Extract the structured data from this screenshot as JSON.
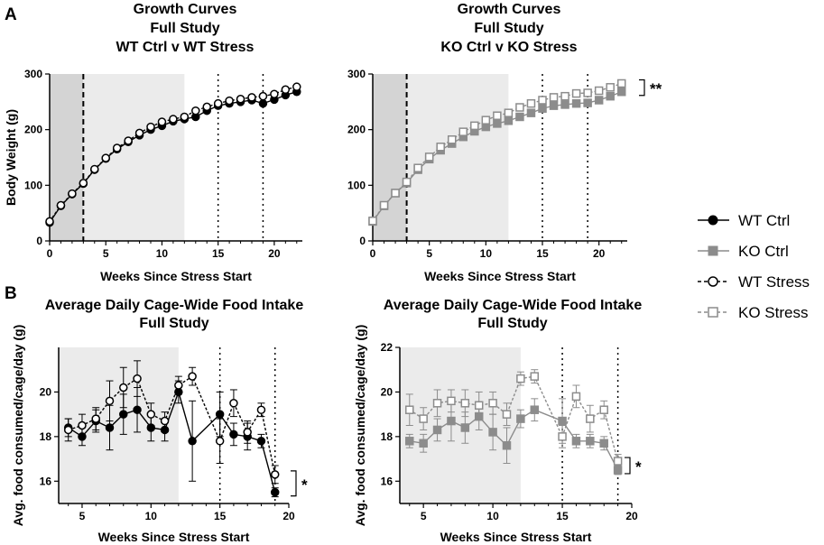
{
  "figure": {
    "panel_labels": [
      "A",
      "B"
    ],
    "legend": [
      "WT Ctrl",
      "KO Ctrl",
      "WT Stress",
      "KO Stress"
    ],
    "colors": {
      "black": "#000000",
      "gray": "#8c8c8c",
      "shade_dark": "#d4d4d4",
      "shade_light": "#ebebeb"
    }
  },
  "chart_data": [
    {
      "id": "A1",
      "type": "line",
      "title": [
        "Growth Curves",
        "Full Study",
        "WT Ctrl v WT Stress"
      ],
      "xlabel": "Weeks Since Stress Start",
      "ylabel": "Body Weight (g)",
      "xlim": [
        0,
        22.5
      ],
      "ylim": [
        0,
        300
      ],
      "xticks": [
        0,
        5,
        10,
        15,
        20
      ],
      "yticks": [
        0,
        100,
        200,
        300
      ],
      "shaded_dark": [
        0,
        3
      ],
      "shaded_light": [
        3,
        12
      ],
      "vlines": [
        {
          "x": 3,
          "style": "dashed"
        },
        {
          "x": 15,
          "style": "dotted"
        },
        {
          "x": 19,
          "style": "dotted"
        }
      ],
      "significance": "",
      "series": [
        {
          "name": "WT Ctrl",
          "color": "#000000",
          "marker": "circle",
          "filled": true,
          "x": [
            0,
            1,
            2,
            3,
            4,
            5,
            6,
            7,
            8,
            9,
            10,
            11,
            12,
            13,
            14,
            15,
            16,
            17,
            18,
            19,
            20,
            21,
            22
          ],
          "y": [
            33,
            63,
            84,
            103,
            128,
            148,
            165,
            178,
            190,
            200,
            207,
            215,
            219,
            223,
            234,
            243,
            247,
            250,
            253,
            247,
            254,
            262,
            268
          ]
        },
        {
          "name": "WT Stress",
          "color": "#000000",
          "marker": "circle",
          "filled": false,
          "x": [
            0,
            1,
            2,
            3,
            4,
            5,
            6,
            7,
            8,
            9,
            10,
            11,
            12,
            13,
            14,
            15,
            16,
            17,
            18,
            19,
            20,
            21,
            22
          ],
          "y": [
            35,
            64,
            85,
            104,
            129,
            149,
            167,
            180,
            194,
            205,
            214,
            219,
            223,
            234,
            241,
            247,
            252,
            255,
            258,
            260,
            264,
            272,
            277
          ]
        }
      ]
    },
    {
      "id": "A2",
      "type": "line",
      "title": [
        "Growth Curves",
        "Full Study",
        "KO Ctrl v KO Stress"
      ],
      "xlabel": "Weeks Since Stress Start",
      "ylabel": "",
      "xlim": [
        0,
        22.5
      ],
      "ylim": [
        0,
        300
      ],
      "xticks": [
        0,
        5,
        10,
        15,
        20
      ],
      "yticks": [
        0,
        100,
        200,
        300
      ],
      "shaded_dark": [
        0,
        3
      ],
      "shaded_light": [
        3,
        12
      ],
      "vlines": [
        {
          "x": 3,
          "style": "dashed"
        },
        {
          "x": 15,
          "style": "dotted"
        },
        {
          "x": 19,
          "style": "dotted"
        }
      ],
      "significance": "**",
      "series": [
        {
          "name": "KO Ctrl",
          "color": "#8c8c8c",
          "marker": "square",
          "filled": true,
          "x": [
            0,
            1,
            2,
            3,
            4,
            5,
            6,
            7,
            8,
            9,
            10,
            11,
            12,
            13,
            14,
            15,
            16,
            17,
            18,
            19,
            20,
            21,
            22
          ],
          "y": [
            35,
            63,
            86,
            104,
            128,
            147,
            163,
            175,
            187,
            197,
            205,
            211,
            216,
            223,
            230,
            238,
            243,
            245,
            247,
            248,
            253,
            260,
            268
          ]
        },
        {
          "name": "KO Stress",
          "color": "#8c8c8c",
          "marker": "square",
          "filled": false,
          "x": [
            0,
            1,
            2,
            3,
            4,
            5,
            6,
            7,
            8,
            9,
            10,
            11,
            12,
            13,
            14,
            15,
            16,
            17,
            18,
            19,
            20,
            21,
            22
          ],
          "y": [
            36,
            64,
            86,
            106,
            131,
            151,
            169,
            182,
            196,
            207,
            217,
            225,
            230,
            240,
            247,
            253,
            258,
            260,
            265,
            266,
            270,
            276,
            283
          ]
        }
      ]
    },
    {
      "id": "B1",
      "type": "line",
      "title": [
        "Average Daily Cage-Wide Food Intake",
        "Full Study"
      ],
      "xlabel": "Weeks Since Stress Start",
      "ylabel": "Avg. food consumed/cage/day (g)",
      "xlim": [
        3.3,
        20
      ],
      "ylim": [
        15,
        22
      ],
      "xticks": [
        5,
        10,
        15,
        20
      ],
      "yticks": [
        16,
        18,
        20
      ],
      "yticklabels_shown": [
        16,
        18,
        20
      ],
      "shaded_dark": null,
      "shaded_light": [
        3.3,
        12
      ],
      "vlines": [
        {
          "x": 15,
          "style": "dotted"
        },
        {
          "x": 19,
          "style": "dotted"
        }
      ],
      "significance": "*",
      "series": [
        {
          "name": "WT Ctrl",
          "color": "#000000",
          "marker": "circle",
          "filled": true,
          "x": [
            4,
            5,
            6,
            7,
            8,
            9,
            10,
            11,
            12,
            13,
            15,
            16,
            17,
            18,
            19
          ],
          "y": [
            18.4,
            18.0,
            18.7,
            18.4,
            19.0,
            19.2,
            18.4,
            18.3,
            20.0,
            17.8,
            19.0,
            18.1,
            18.0,
            17.8,
            15.5
          ],
          "err": [
            0.4,
            0.4,
            0.5,
            1.0,
            0.9,
            1.0,
            0.6,
            0.5,
            0.5,
            1.8,
            1.0,
            0.5,
            0.6,
            0.3,
            0.2
          ]
        },
        {
          "name": "WT Stress",
          "color": "#000000",
          "marker": "circle",
          "filled": false,
          "x": [
            4,
            5,
            6,
            7,
            8,
            9,
            10,
            11,
            12,
            13,
            15,
            16,
            17,
            18,
            19
          ],
          "y": [
            18.3,
            18.5,
            18.8,
            19.6,
            20.2,
            20.6,
            19.0,
            18.7,
            20.3,
            20.7,
            17.8,
            19.5,
            18.2,
            19.2,
            16.3
          ],
          "err": [
            0.5,
            0.5,
            0.5,
            0.9,
            0.9,
            0.8,
            0.5,
            0.4,
            0.4,
            0.4,
            1.0,
            0.6,
            0.5,
            0.3,
            0.4
          ]
        }
      ]
    },
    {
      "id": "B2",
      "type": "line",
      "title": [
        "Average Daily Cage-Wide Food Intake",
        "Full Study"
      ],
      "xlabel": "Weeks Since Stress Start",
      "ylabel": "Avg. food consumed/cage/day (g)",
      "xlim": [
        3.3,
        20
      ],
      "ylim": [
        15,
        22
      ],
      "xticks": [
        5,
        10,
        15,
        20
      ],
      "yticks": [
        16,
        18,
        20,
        22
      ],
      "shaded_dark": null,
      "shaded_light": [
        3.3,
        12
      ],
      "vlines": [
        {
          "x": 15,
          "style": "dotted"
        },
        {
          "x": 19,
          "style": "dotted"
        }
      ],
      "significance": "*",
      "series": [
        {
          "name": "KO Ctrl",
          "color": "#8c8c8c",
          "marker": "square",
          "filled": true,
          "x": [
            4,
            5,
            6,
            7,
            8,
            9,
            10,
            11,
            12,
            13,
            15,
            16,
            17,
            18,
            19
          ],
          "y": [
            17.8,
            17.7,
            18.3,
            18.7,
            18.4,
            18.9,
            18.2,
            17.6,
            18.8,
            19.2,
            18.7,
            17.8,
            17.8,
            17.7,
            16.5
          ],
          "err": [
            0.3,
            0.4,
            0.5,
            0.9,
            0.7,
            0.6,
            0.8,
            0.8,
            0.4,
            0.5,
            1.0,
            0.3,
            0.3,
            0.3,
            0.2
          ]
        },
        {
          "name": "KO Stress",
          "color": "#8c8c8c",
          "marker": "square",
          "filled": false,
          "x": [
            4,
            5,
            6,
            7,
            8,
            9,
            10,
            11,
            12,
            13,
            15,
            16,
            17,
            18,
            19
          ],
          "y": [
            19.2,
            18.8,
            19.5,
            19.6,
            19.5,
            19.4,
            19.5,
            19.0,
            20.6,
            20.7,
            18.0,
            19.8,
            18.8,
            19.2,
            16.9
          ],
          "err": [
            0.7,
            0.5,
            0.6,
            0.5,
            0.6,
            0.6,
            0.5,
            0.5,
            0.3,
            0.3,
            0.5,
            0.5,
            0.6,
            0.4,
            0.3
          ]
        }
      ]
    }
  ]
}
